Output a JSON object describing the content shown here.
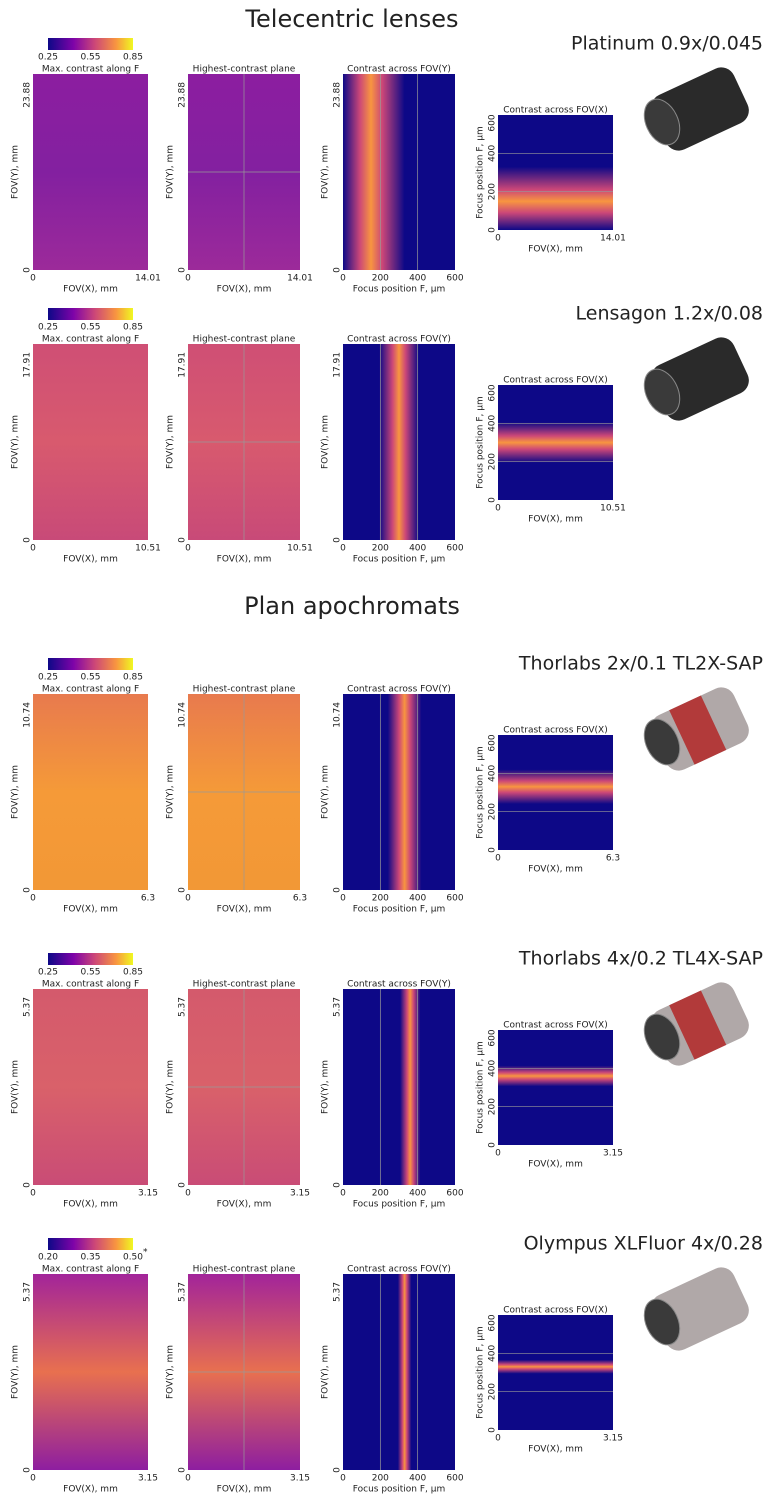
{
  "sections": [
    {
      "title": "Telecentric lenses",
      "lenses": [
        {
          "name": "Platinum 0.9x/0.045",
          "colorbar_ticks": [
            "0.25",
            "0.55",
            "0.85"
          ],
          "fov_y_max": "23.88",
          "fov_x_max": "14.01"
        },
        {
          "name": "Lensagon 1.2x/0.08",
          "colorbar_ticks": [
            "0.25",
            "0.55",
            "0.85"
          ],
          "fov_y_max": "17.91",
          "fov_x_max": "10.51"
        }
      ]
    },
    {
      "title": "Plan apochromats",
      "lenses": [
        {
          "name": "Thorlabs 2x/0.1 TL2X-SAP",
          "colorbar_ticks": [
            "0.25",
            "0.55",
            "0.85"
          ],
          "fov_y_max": "10.74",
          "fov_x_max": "6.3"
        },
        {
          "name": "Thorlabs 4x/0.2 TL4X-SAP",
          "colorbar_ticks": [
            "0.25",
            "0.55",
            "0.85"
          ],
          "fov_y_max": "5.37",
          "fov_x_max": "3.15"
        },
        {
          "name": "Olympus XLFluor 4x/0.28",
          "colorbar_ticks": [
            "0.20",
            "0.35",
            "0.50"
          ],
          "colorbar_note": "*",
          "fov_y_max": "5.37",
          "fov_x_max": "3.15"
        }
      ]
    }
  ],
  "panel_titles": [
    "Max. contrast along F",
    "Highest-contrast plane",
    "Contrast across FOV(Y)",
    "Contrast across FOV(X)"
  ],
  "labels": {
    "fov_x": "FOV(X), mm",
    "fov_y": "FOV(Y), mm",
    "focus": "Focus position F, μm"
  },
  "origin_tick": "0",
  "focus_ticks": [
    "200",
    "400",
    "600"
  ]
}
